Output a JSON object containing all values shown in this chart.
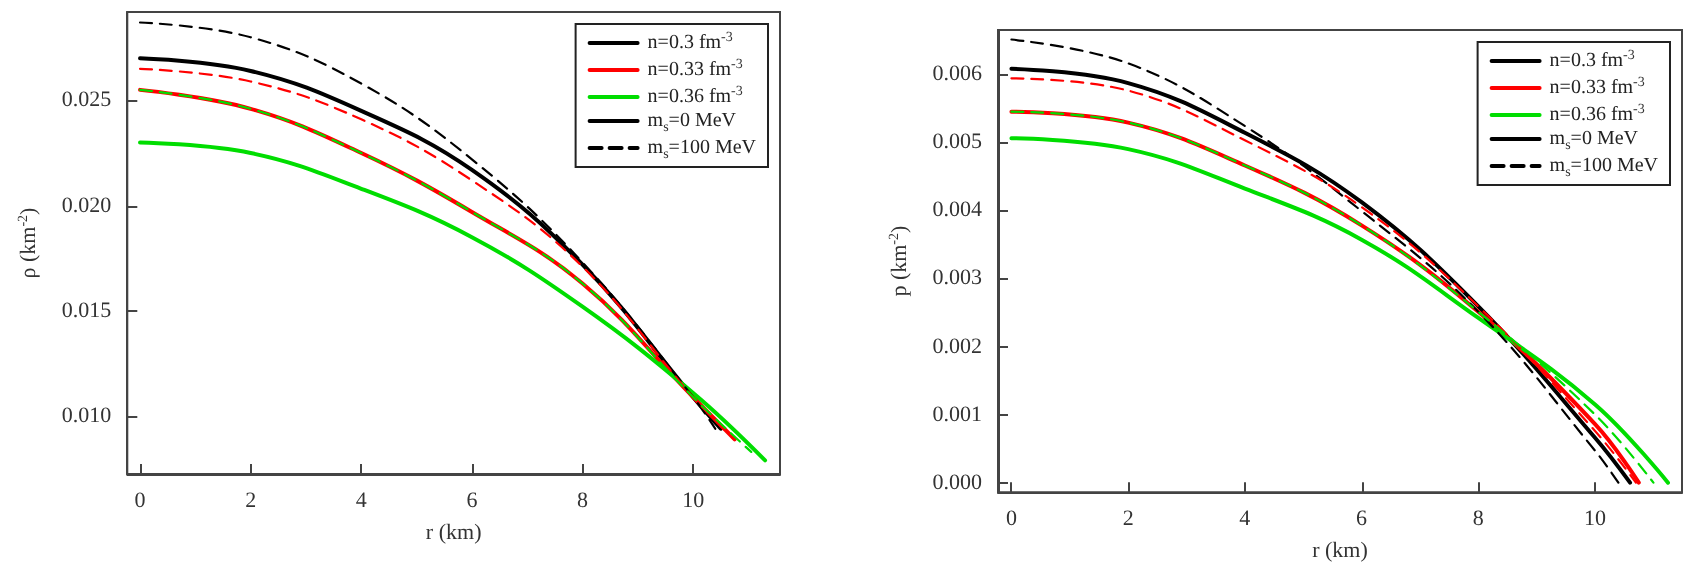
{
  "chart_data": [
    {
      "type": "line",
      "xlabel": "r (km)",
      "ylabel": "ρ (km$^{-2}$)",
      "xlim": [
        -0.23,
        11.57
      ],
      "ylim": [
        0.00725,
        0.0292
      ],
      "xticks": [
        0,
        2,
        4,
        6,
        8,
        10
      ],
      "yticks": [
        {
          "value": 0.01,
          "label": "0.010"
        },
        {
          "value": 0.015,
          "label": "0.015"
        },
        {
          "value": 0.02,
          "label": "0.020"
        },
        {
          "value": 0.025,
          "label": "0.025"
        }
      ],
      "grid": false,
      "legend": "top right",
      "marker": "none",
      "series": [
        {
          "name": "n=0.3 fm$^{-3}$",
          "color": "#000000",
          "line_style": "solid",
          "x": [
            0,
            2,
            4,
            6,
            8,
            10,
            10.5
          ],
          "values": [
            0.027,
            0.0264,
            0.0245,
            0.0217,
            0.0172,
            0.0109,
            0.0094
          ]
        },
        {
          "name": "n=0.33 fm$^{-3}$",
          "color": "#ff0000",
          "line_style": "solid",
          "x": [
            0,
            2,
            4,
            6,
            8,
            10,
            10.75
          ],
          "values": [
            0.0255,
            0.0246,
            0.0225,
            0.0197,
            0.0163,
            0.0109,
            0.0089
          ]
        },
        {
          "name": "n=0.36 fm$^{-3}$",
          "color": "#00dd00",
          "line_style": "solid",
          "x": [
            0,
            2,
            4,
            6,
            8,
            10,
            11.3
          ],
          "values": [
            0.023,
            0.0225,
            0.0208,
            0.0185,
            0.0152,
            0.0111,
            0.0079
          ]
        },
        {
          "name": "m$_{s}$=0 MeV",
          "color": "#000000",
          "line_style": "solid"
        },
        {
          "name": "m$_{s}$=100 MeV",
          "color": "#000000",
          "line_style": "dashed",
          "x": [
            0,
            2,
            4,
            6,
            8,
            10,
            10.4
          ],
          "values": [
            0.0287,
            0.028,
            0.0258,
            0.0222,
            0.0173,
            0.0109,
            0.0094
          ]
        },
        {
          "color": "#ff0000",
          "line_style": "dashed",
          "x": [
            0,
            2,
            4,
            6,
            8,
            10,
            10.75
          ],
          "values": [
            0.0265,
            0.0259,
            0.0241,
            0.0212,
            0.0171,
            0.0109,
            0.0089
          ]
        },
        {
          "color": "#00dd00",
          "line_style": "dashed",
          "x": [
            0,
            2,
            4,
            6,
            8,
            10,
            11.05
          ],
          "values": [
            0.0255,
            0.0246,
            0.0225,
            0.0197,
            0.0163,
            0.0109,
            0.0083
          ]
        }
      ]
    },
    {
      "type": "line",
      "xlabel": "r (km)",
      "ylabel": "p (km$^{-2}$)",
      "xlim": [
        -0.23,
        11.49
      ],
      "ylim": [
        -0.00014,
        0.00665
      ],
      "xticks": [
        0,
        2,
        4,
        6,
        8,
        10
      ],
      "yticks": [
        {
          "value": 0,
          "label": "0.000"
        },
        {
          "value": 0.001,
          "label": "0.001"
        },
        {
          "value": 0.002,
          "label": "0.002"
        },
        {
          "value": 0.003,
          "label": "0.003"
        },
        {
          "value": 0.004,
          "label": "0.004"
        },
        {
          "value": 0.005,
          "label": "0.005"
        },
        {
          "value": 0.006,
          "label": "0.006"
        }
      ],
      "grid": false,
      "legend": "top right",
      "marker": "none",
      "series": [
        {
          "name": "n=0.3 fm$^{-3}$",
          "color": "#000000",
          "line_style": "solid",
          "x": [
            0,
            2,
            4,
            6,
            8,
            10,
            10.6
          ],
          "values": [
            0.00608,
            0.00587,
            0.00514,
            0.00412,
            0.00259,
            0.00066,
            0
          ]
        },
        {
          "name": "n=0.33 fm$^{-3}$",
          "color": "#ff0000",
          "line_style": "solid",
          "x": [
            0,
            2,
            4,
            6,
            8,
            10,
            10.75
          ],
          "values": [
            0.00545,
            0.00529,
            0.00466,
            0.00378,
            0.00251,
            0.00086,
            0
          ]
        },
        {
          "name": "n=0.36 fm$^{-3}$",
          "color": "#00dd00",
          "line_style": "solid",
          "x": [
            0,
            2,
            4,
            6,
            8,
            10,
            11.25
          ],
          "values": [
            0.00506,
            0.0049,
            0.00432,
            0.00357,
            0.00242,
            0.00115,
            0
          ]
        },
        {
          "name": "m$_{s}$=0 MeV",
          "color": "#000000",
          "line_style": "solid"
        },
        {
          "name": "m$_{s}$=100 MeV",
          "color": "#000000",
          "line_style": "dashed",
          "x": [
            0,
            2,
            4,
            6,
            8,
            10,
            10.4
          ],
          "values": [
            0.00651,
            0.00616,
            0.00524,
            0.00399,
            0.00251,
            0.00047,
            0
          ]
        },
        {
          "color": "#ff0000",
          "line_style": "dashed",
          "x": [
            0,
            2,
            4,
            6,
            8,
            10,
            10.7
          ],
          "values": [
            0.00594,
            0.00576,
            0.00503,
            0.00405,
            0.00259,
            0.00076,
            0
          ]
        },
        {
          "color": "#00dd00",
          "line_style": "dashed",
          "x": [
            0,
            2,
            4,
            6,
            8,
            10,
            11.0
          ],
          "values": [
            0.00545,
            0.00529,
            0.00466,
            0.00378,
            0.00251,
            0.001,
            0
          ]
        }
      ]
    }
  ]
}
